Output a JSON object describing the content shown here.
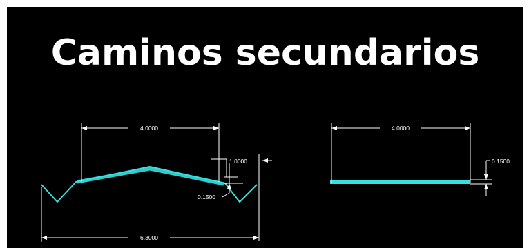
{
  "title": "Caminos secundarios",
  "colors": {
    "background": "#000000",
    "road": "#35e0e0",
    "dimension": "#ffffff"
  },
  "left_section": {
    "top_width": "4.0000",
    "crown_height": "1.0000",
    "thickness": "0.1500",
    "total_width": "6.3000"
  },
  "right_section": {
    "top_width": "4.0000",
    "thickness": "0.1500"
  }
}
